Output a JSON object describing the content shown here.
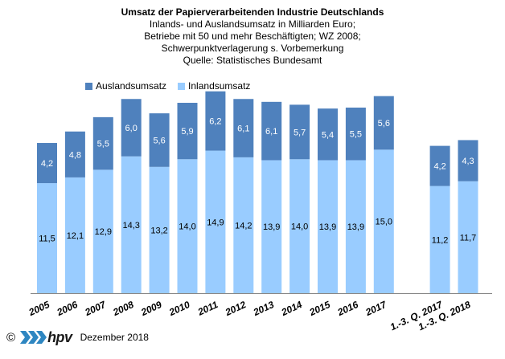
{
  "chart_data": {
    "type": "bar",
    "stacked": true,
    "title": "Umsatz der Papierverarbeitenden Industrie Deutschlands",
    "subtitle_lines": [
      "Inlands- und Auslandsumsatz in Milliarden Euro;",
      "Betriebe mit 50 und mehr Beschäftigten;  WZ 2008;",
      "Schwerpunktverlagerung  s. Vorbemerkung",
      "Quelle: Statistisches Bundesamt"
    ],
    "categories": [
      "2005",
      "2006",
      "2007",
      "2008",
      "2009",
      "2010",
      "2011",
      "2012",
      "2013",
      "2014",
      "2015",
      "2016",
      "2017",
      "",
      "1.-3. Q. 2017",
      "1.-3. Q. 2018"
    ],
    "series": [
      {
        "name": "Inlandsumsatz",
        "color": "#99ccff",
        "values": [
          11.5,
          12.1,
          12.9,
          14.3,
          13.2,
          14.0,
          14.9,
          14.2,
          13.9,
          14.0,
          13.9,
          13.9,
          15.0,
          null,
          11.2,
          11.7
        ],
        "labels": [
          "11,5",
          "12,1",
          "12,9",
          "14,3",
          "13,2",
          "14,0",
          "14,9",
          "14,2",
          "13,9",
          "14,0",
          "13,9",
          "13,9",
          "15,0",
          "",
          "11,2",
          "11,7"
        ]
      },
      {
        "name": "Auslandsumsatz",
        "color": "#4f81bd",
        "values": [
          4.2,
          4.8,
          5.5,
          6.0,
          5.6,
          5.9,
          6.2,
          6.1,
          6.1,
          5.7,
          5.4,
          5.5,
          5.6,
          null,
          4.2,
          4.3
        ],
        "labels": [
          "4,2",
          "4,8",
          "5,5",
          "6,0",
          "5,6",
          "5,9",
          "6,2",
          "6,1",
          "6,1",
          "5,7",
          "5,4",
          "5,5",
          "5,6",
          "",
          "4,2",
          "4,3"
        ]
      }
    ],
    "xlabel": "",
    "ylabel": "",
    "ylim": [
      0,
      22
    ],
    "grid": false,
    "legend_position": "top-left",
    "tick_rotation_deg": -25
  },
  "legend": {
    "auslands": "Auslandsumsatz",
    "inlands": "Inlandsumsatz"
  },
  "footer": {
    "copyright": "©",
    "logo_text": "hpv",
    "date": "Dezember 2018"
  },
  "colors": {
    "inland": "#99ccff",
    "ausland": "#4f81bd",
    "logo_blue": "#2e86c1"
  }
}
